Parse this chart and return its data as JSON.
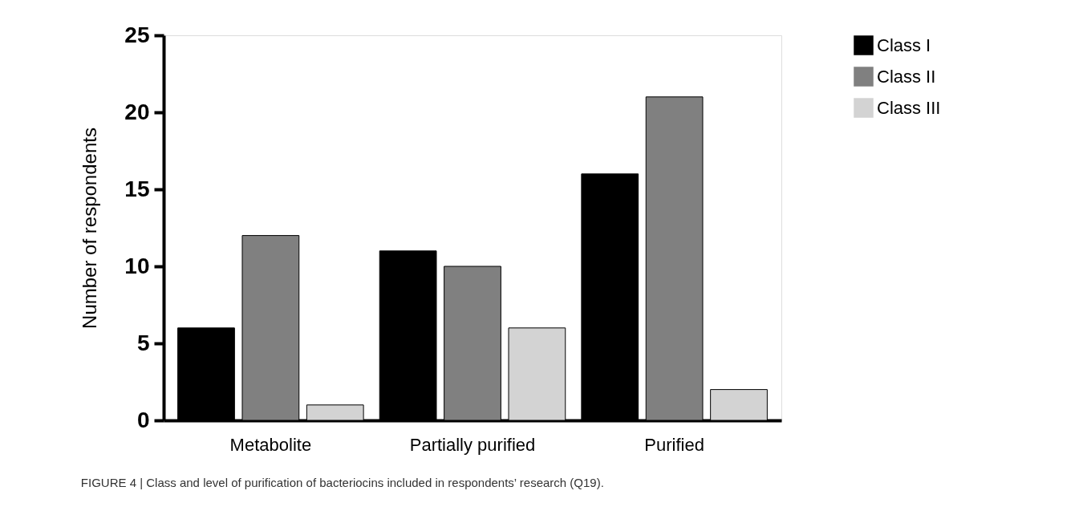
{
  "chart_data": {
    "type": "bar",
    "ylabel": "Number of respondents",
    "categories": [
      "Metabolite",
      "Partially purified",
      "Purified"
    ],
    "series": [
      {
        "name": "Class I",
        "color": "#000000",
        "values": [
          6,
          11,
          16
        ]
      },
      {
        "name": "Class II",
        "color": "#808080",
        "values": [
          12,
          10,
          21
        ]
      },
      {
        "name": "Class III",
        "color": "#d3d3d3",
        "values": [
          1,
          6,
          2
        ]
      }
    ],
    "ylim": [
      0,
      25
    ],
    "yticks": [
      0,
      5,
      10,
      15,
      20,
      25
    ],
    "grid": false,
    "legend": "top right",
    "annotations": [
      "FIGURE 4 | Class and level of purification of bacteriocins included in respondents’ research (Q19)."
    ]
  }
}
